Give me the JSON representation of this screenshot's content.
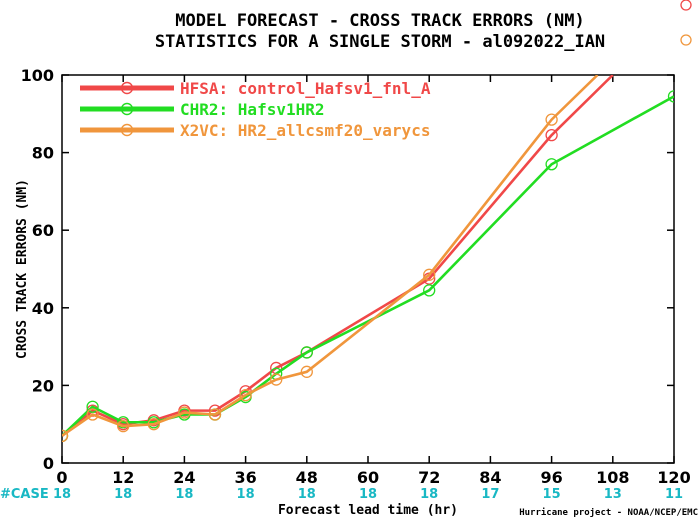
{
  "chart_data": {
    "type": "line",
    "title": "MODEL FORECAST - CROSS TRACK ERRORS (NM)",
    "subtitle": "STATISTICS FOR A SINGLE STORM - al092022_IAN",
    "xlabel": "Forecast lead time (hr)",
    "ylabel": "CROSS TRACK ERRORS (NM)",
    "xlim": [
      0,
      120
    ],
    "ylim": [
      0,
      100
    ],
    "x_ticks": [
      0,
      12,
      24,
      36,
      48,
      60,
      72,
      84,
      96,
      108,
      120
    ],
    "y_ticks": [
      0,
      20,
      40,
      60,
      80,
      100
    ],
    "grid": false,
    "legend_position": "top-left",
    "series": [
      {
        "name": "HFSA: control_Hafsv1_fnl_A",
        "color": "#f04848",
        "x": [
          0,
          6,
          12,
          18,
          24,
          30,
          36,
          42,
          48,
          72,
          96,
          108
        ],
        "y": [
          7,
          13.5,
          10,
          11,
          13.5,
          13.5,
          18.5,
          24.5,
          28.5,
          47.5,
          84.5,
          100
        ]
      },
      {
        "name": "CHR2: Hafsv1HR2",
        "color": "#22dd22",
        "x": [
          0,
          6,
          12,
          18,
          24,
          30,
          36,
          42,
          48,
          72,
          96,
          120
        ],
        "y": [
          7,
          14.5,
          10.5,
          10.5,
          12.5,
          12.5,
          17,
          23,
          28.5,
          44.5,
          77,
          94.5
        ]
      },
      {
        "name": "X2VC: HR2_allcsmf20_varycs",
        "color": "#f0963c",
        "x": [
          0,
          6,
          12,
          18,
          24,
          30,
          36,
          42,
          48,
          72,
          96,
          105
        ],
        "y": [
          7,
          12.5,
          9.5,
          10,
          13,
          12.5,
          17.5,
          21.5,
          23.5,
          48.5,
          88.5,
          100
        ]
      }
    ],
    "case_label": "#CASE",
    "case_counts": [
      {
        "x": 0,
        "count": "18"
      },
      {
        "x": 12,
        "count": "18"
      },
      {
        "x": 24,
        "count": "18"
      },
      {
        "x": 36,
        "count": "18"
      },
      {
        "x": 48,
        "count": "18"
      },
      {
        "x": 60,
        "count": "18"
      },
      {
        "x": 72,
        "count": "18"
      },
      {
        "x": 84,
        "count": "17"
      },
      {
        "x": 96,
        "count": "15"
      },
      {
        "x": 108,
        "count": "13"
      },
      {
        "x": 120,
        "count": "11"
      }
    ],
    "credit": "Hurricane project - NOAA/NCEP/EMC"
  }
}
